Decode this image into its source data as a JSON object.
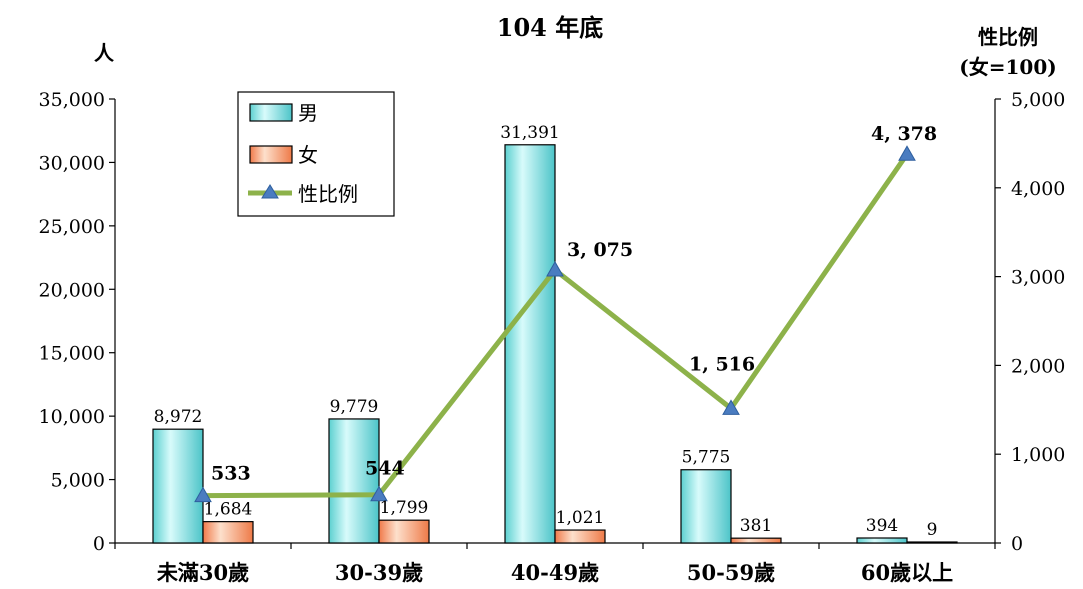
{
  "chart_data": {
    "type": "bar",
    "title": "104 年底",
    "ylabel": "人",
    "y2label_line1": "性比例",
    "y2label_line2": "(女=100)",
    "categories": [
      "未滿30歲",
      "30-39歲",
      "40-49歲",
      "50-59歲",
      "60歲以上"
    ],
    "series": [
      {
        "name": "男",
        "kind": "bar",
        "axis": "left",
        "color": "#7fe0e0",
        "values": [
          8972,
          9779,
          31391,
          5775,
          394
        ],
        "labels": [
          "8,972",
          "9,779",
          "31,391",
          "5,775",
          "394"
        ]
      },
      {
        "name": "女",
        "kind": "bar",
        "axis": "left",
        "color": "#f4a07a",
        "values": [
          1684,
          1799,
          1021,
          381,
          9
        ],
        "labels": [
          "1,684",
          "1,799",
          "1,021",
          "381",
          "9"
        ]
      },
      {
        "name": "性比例",
        "kind": "line",
        "axis": "right",
        "color": "#8db24a",
        "marker_color": "#4a7cc0",
        "values": [
          533,
          544,
          3075,
          1516,
          4378
        ],
        "labels": [
          "533",
          "544",
          "3, 075",
          "1, 516",
          "4, 378"
        ]
      }
    ],
    "ylim": [
      0,
      35000
    ],
    "yticks": [
      0,
      5000,
      10000,
      15000,
      20000,
      25000,
      30000,
      35000
    ],
    "yticklabels": [
      "0",
      "5,000",
      "10,000",
      "15,000",
      "20,000",
      "25,000",
      "30,000",
      "35,000"
    ],
    "y2lim": [
      0,
      5000
    ],
    "y2ticks": [
      0,
      1000,
      2000,
      3000,
      4000,
      5000
    ],
    "y2ticklabels": [
      "0",
      "1,000",
      "2,000",
      "3,000",
      "4,000",
      "5,000"
    ],
    "grid": false,
    "legend_position": "top-left"
  }
}
